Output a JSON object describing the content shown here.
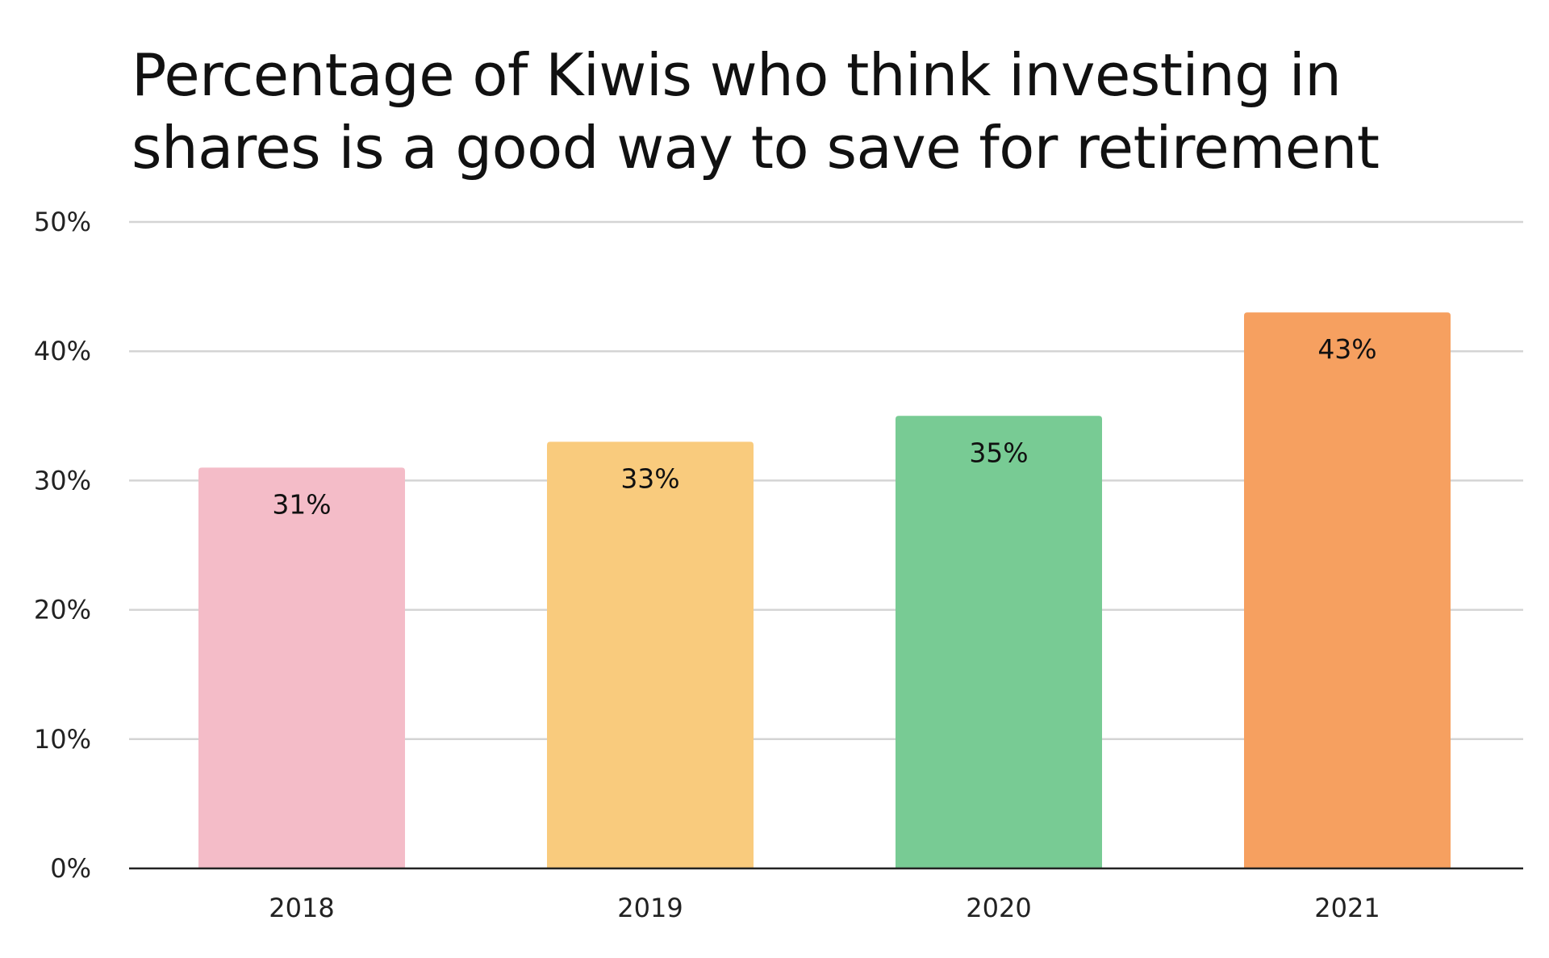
{
  "chart_data": {
    "type": "bar",
    "title": "Percentage of Kiwis who think investing in shares is a good way to save for retirement",
    "categories": [
      "2018",
      "2019",
      "2020",
      "2021"
    ],
    "values": [
      31,
      33,
      35,
      43
    ],
    "data_labels": [
      "31%",
      "33%",
      "35%",
      "43%"
    ],
    "colors": [
      "#f4bcc8",
      "#f9cb7d",
      "#78cb94",
      "#f6a060"
    ],
    "ylim": [
      0,
      50
    ],
    "yticks": [
      0,
      10,
      20,
      30,
      40,
      50
    ],
    "ytick_labels": [
      "0%",
      "10%",
      "20%",
      "30%",
      "40%",
      "50%"
    ],
    "xlabel": "",
    "ylabel": "",
    "grid": true,
    "legend": "none"
  }
}
